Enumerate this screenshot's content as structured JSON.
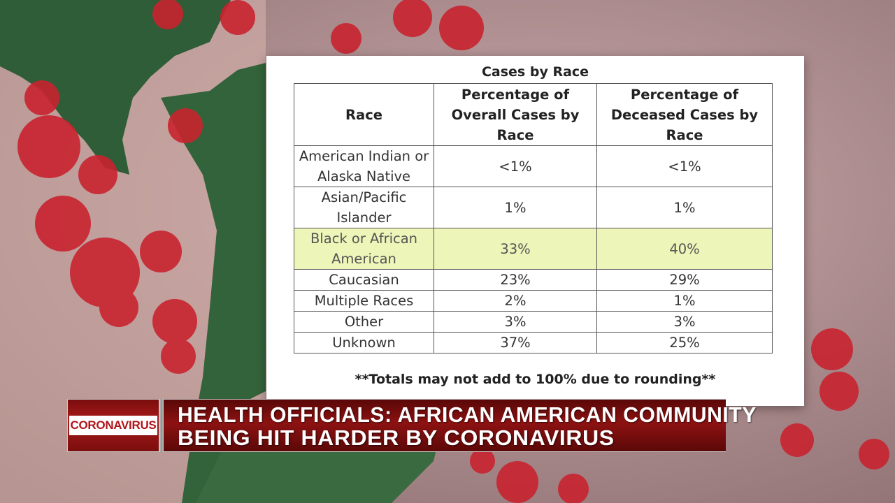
{
  "table": {
    "title": "Cases by Race",
    "headers": [
      "Race",
      "Percentage of Overall Cases by Race",
      "Percentage of Deceased Cases by Race"
    ],
    "rows": [
      {
        "race": "American Indian or Alaska Native",
        "overall": "<1%",
        "deceased": "<1%"
      },
      {
        "race": "Asian/Pacific Islander",
        "overall": "1%",
        "deceased": "1%"
      },
      {
        "race": "Black or African American",
        "overall": "33%",
        "deceased": "40%"
      },
      {
        "race": "Caucasian",
        "overall": "23%",
        "deceased": "29%"
      },
      {
        "race": "Multiple Races",
        "overall": "2%",
        "deceased": "1%"
      },
      {
        "race": "Other",
        "overall": "3%",
        "deceased": "3%"
      },
      {
        "race": "Unknown",
        "overall": "37%",
        "deceased": "25%"
      }
    ],
    "highlight_color": "#eef5b8",
    "footnote": "**Totals may not add to 100% due to rounding**"
  },
  "lower_third": {
    "badge": "CORONAVIRUS",
    "headline_line1": "HEALTH OFFICIALS: AFRICAN AMERICAN COMMUNITY",
    "headline_line2": "BEING HIT HARDER BY CORONAVIRUS",
    "bar_color": "#8d1212"
  }
}
